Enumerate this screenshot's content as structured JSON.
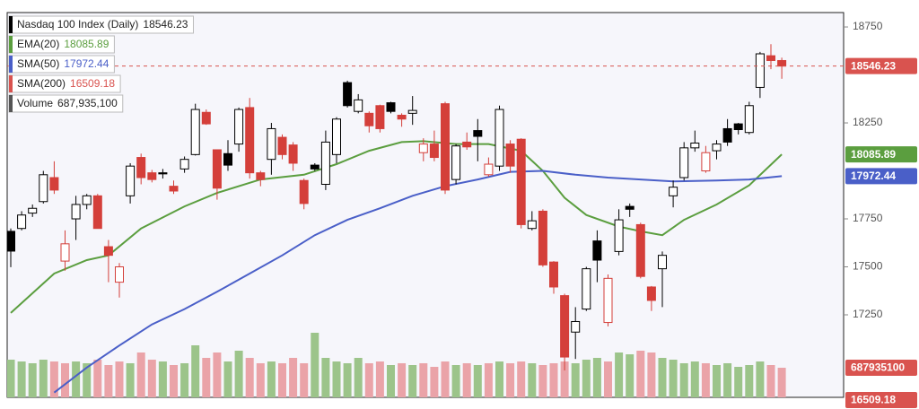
{
  "chart_data": {
    "type": "candlestick",
    "ylim": [
      16820,
      18825
    ],
    "yticks": [
      17250,
      17500,
      17750,
      18250,
      18750
    ],
    "y2lim": [
      0,
      8950000000
    ],
    "price": {
      "name": "Nasdaq 100 Index (Daily)",
      "up_color": "#000000",
      "down_color": "#d43f3a",
      "open": [
        17685,
        17700,
        17780,
        17840,
        17965,
        17530,
        17750,
        17825,
        17870,
        17605,
        17420,
        17870,
        18070,
        17990,
        17990,
        17920,
        18010,
        18085,
        18305,
        18110,
        18090,
        18140,
        18330,
        17990,
        18060,
        18175,
        18135,
        17950,
        18030,
        17930,
        18085,
        18460,
        18310,
        18300,
        18340,
        18355,
        18290,
        18300,
        18095,
        18140,
        18350,
        17955,
        18150,
        18210,
        17980,
        18025,
        18140,
        18165,
        17700,
        17790,
        17525,
        17350,
        17160,
        17280,
        17635,
        17210,
        17580,
        17815,
        17720,
        17395,
        17490,
        17870,
        17965,
        18120,
        18000,
        18105,
        18220,
        18245,
        18200,
        18435,
        18600,
        18575
      ],
      "high": [
        17700,
        17790,
        17825,
        18000,
        18050,
        17690,
        17870,
        17880,
        17880,
        17640,
        17520,
        18040,
        18090,
        18005,
        18010,
        17950,
        18075,
        18350,
        18320,
        18110,
        18160,
        18330,
        18380,
        18000,
        18250,
        18190,
        18150,
        17960,
        18040,
        18210,
        18280,
        18470,
        18400,
        18310,
        18345,
        18360,
        18300,
        18390,
        18170,
        18210,
        18360,
        18140,
        18200,
        18270,
        18070,
        18340,
        18160,
        18170,
        17790,
        17800,
        17530,
        17360,
        17290,
        17500,
        17690,
        17460,
        17800,
        17830,
        17730,
        17400,
        17580,
        17950,
        18150,
        18210,
        18130,
        18160,
        18270,
        18250,
        18360,
        18620,
        18660,
        18590
      ],
      "low": [
        17498,
        17690,
        17760,
        17830,
        17880,
        17480,
        17640,
        17800,
        17700,
        17420,
        17340,
        17830,
        17930,
        17940,
        17960,
        17880,
        17990,
        18080,
        18240,
        17850,
        18000,
        18100,
        17960,
        17920,
        17980,
        18060,
        18000,
        17800,
        18000,
        17900,
        18040,
        18330,
        18300,
        18200,
        18200,
        18300,
        18230,
        18240,
        18050,
        18050,
        17880,
        17930,
        18110,
        18050,
        17970,
        18000,
        17990,
        17700,
        17690,
        17500,
        17360,
        16960,
        17020,
        17270,
        17420,
        17190,
        17560,
        17760,
        17440,
        17270,
        17290,
        17810,
        17950,
        18100,
        17990,
        18060,
        18130,
        18190,
        18190,
        18380,
        18530,
        18480
      ],
      "close": [
        17582,
        17770,
        17805,
        17980,
        17900,
        17620,
        17825,
        17870,
        17700,
        17560,
        17500,
        18025,
        17965,
        17955,
        17985,
        17895,
        18060,
        18320,
        18245,
        17910,
        18030,
        18320,
        17990,
        17955,
        18220,
        18085,
        18040,
        17830,
        18010,
        18150,
        18270,
        18340,
        18370,
        18235,
        18220,
        18310,
        18270,
        18315,
        18140,
        18070,
        17900,
        18130,
        18125,
        18180,
        18035,
        18320,
        18025,
        17720,
        17740,
        17510,
        17395,
        17030,
        17215,
        17490,
        17535,
        17440,
        17745,
        17800,
        17450,
        17325,
        17560,
        17915,
        18120,
        18145,
        18095,
        18140,
        18150,
        18215,
        18340,
        18610,
        18575,
        18546.23
      ],
      "tag_color": "#d9534f"
    },
    "series": [
      {
        "name": "EMA(20)",
        "color": "#5b9e3f",
        "x": [
          0,
          4,
          7,
          9,
          12,
          16,
          19,
          23,
          27,
          30,
          33,
          36,
          38,
          41,
          44,
          47,
          49,
          51,
          53,
          56,
          58,
          60,
          62,
          65,
          68,
          71
        ],
        "values": [
          17260,
          17465,
          17535,
          17560,
          17700,
          17815,
          17885,
          17955,
          17980,
          18035,
          18105,
          18150,
          18155,
          18140,
          18140,
          18105,
          18000,
          17860,
          17770,
          17710,
          17685,
          17665,
          17745,
          17825,
          17925,
          18085.89
        ]
      },
      {
        "name": "SMA(50)",
        "color": "#4a5fc8",
        "x": [
          4,
          7,
          10,
          13,
          16,
          19,
          22,
          25,
          28,
          31,
          34,
          37,
          40,
          43,
          46,
          49,
          52,
          55,
          58,
          61,
          65,
          68,
          71
        ],
        "values": [
          16845,
          16975,
          17090,
          17200,
          17280,
          17370,
          17465,
          17560,
          17665,
          17745,
          17805,
          17870,
          17920,
          17955,
          17995,
          18000,
          17980,
          17965,
          17955,
          17945,
          17950,
          17955,
          17972.44
        ]
      },
      {
        "name": "SMA(200)",
        "color": "#d9534f",
        "values": [
          16509.18
        ]
      }
    ],
    "volume": {
      "name": "Volume",
      "up_color": "#9cc48a",
      "down_color": "#eaa3a8",
      "tag_color": "#d9534f",
      "values": [
        876000000,
        834000000,
        793000000,
        876000000,
        834000000,
        793000000,
        834000000,
        793000000,
        876000000,
        751000000,
        834000000,
        793000000,
        1043000000,
        876000000,
        834000000,
        751000000,
        793000000,
        1210000000,
        918000000,
        1043000000,
        834000000,
        1085000000,
        918000000,
        793000000,
        834000000,
        793000000,
        918000000,
        793000000,
        1502000000,
        918000000,
        834000000,
        793000000,
        918000000,
        793000000,
        834000000,
        751000000,
        793000000,
        751000000,
        793000000,
        709000000,
        834000000,
        751000000,
        793000000,
        751000000,
        793000000,
        834000000,
        793000000,
        834000000,
        793000000,
        751000000,
        793000000,
        834000000,
        793000000,
        876000000,
        918000000,
        834000000,
        1043000000,
        1001000000,
        1085000000,
        1043000000,
        918000000,
        876000000,
        793000000,
        834000000,
        793000000,
        751000000,
        793000000,
        709000000,
        751000000,
        834000000,
        751000000,
        687935100
      ],
      "legend_value_label": "687,935,100"
    }
  }
}
